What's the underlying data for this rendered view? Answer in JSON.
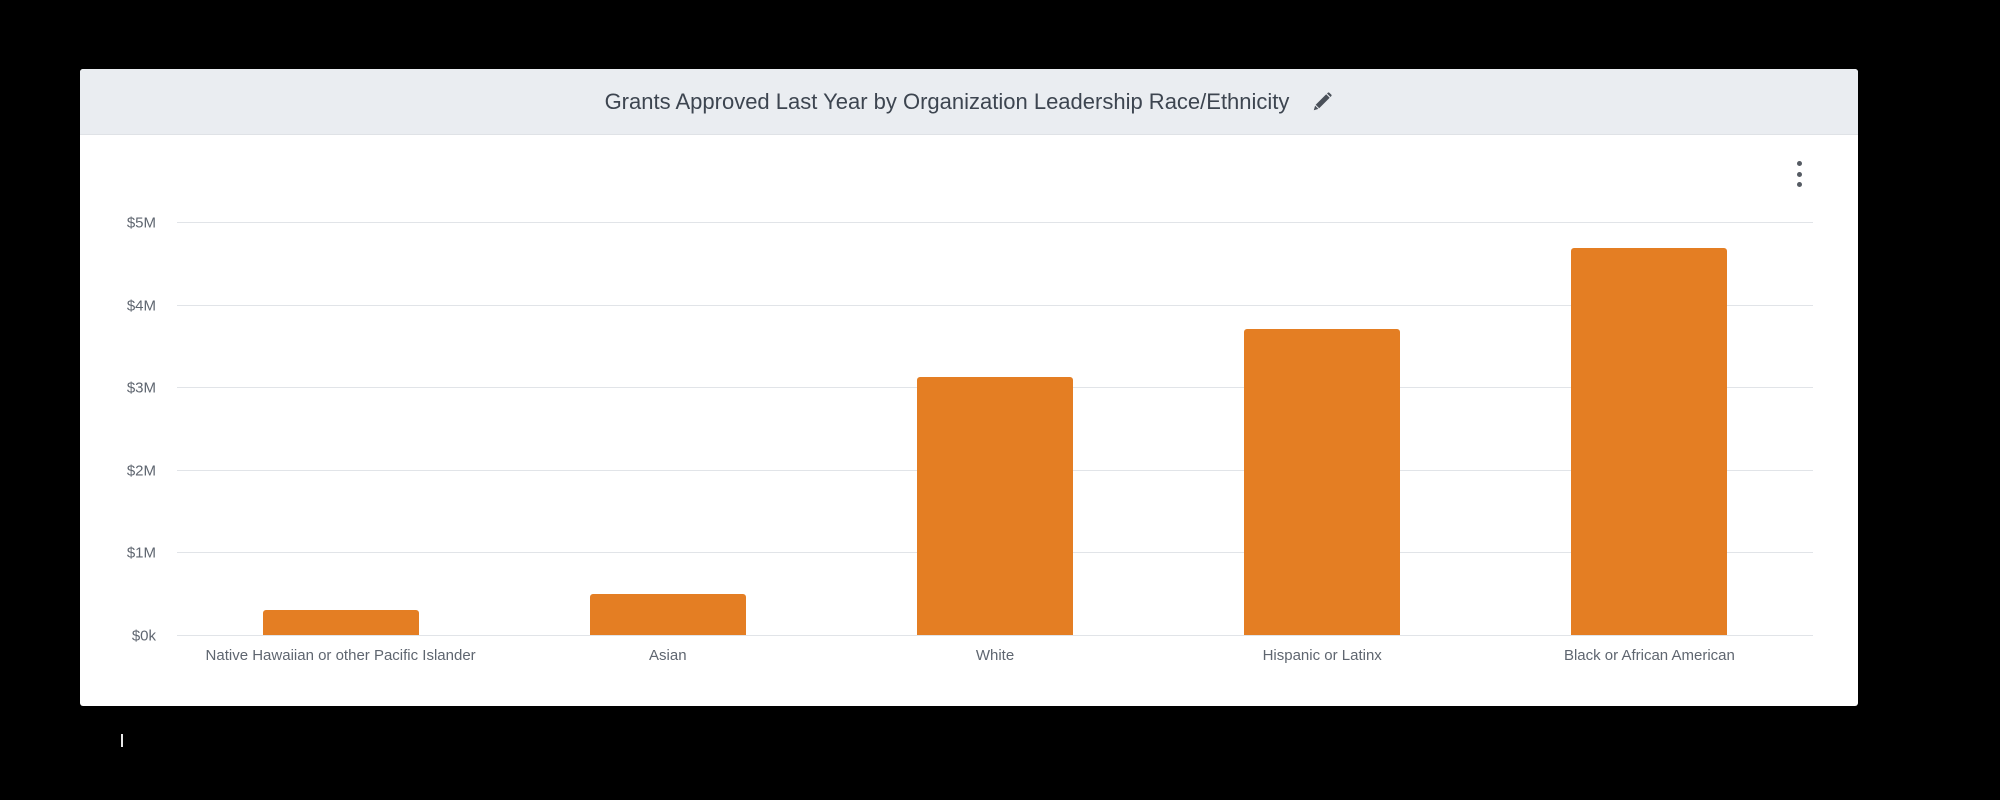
{
  "panel": {
    "title": "Grants Approved Last Year by Organization Leadership Race/Ethnicity",
    "edit_icon": "pencil-icon",
    "menu_icon": "kebab-menu-icon"
  },
  "colors": {
    "bar": "#e47e23",
    "header_bg": "#eaedf1",
    "gridline": "#e1e4e8",
    "axis_text": "#5f6670",
    "title_text": "#3d4550"
  },
  "chart_data": {
    "type": "bar",
    "title": "Grants Approved Last Year by Organization Leadership Race/Ethnicity",
    "xlabel": "",
    "ylabel": "",
    "categories": [
      "Native Hawaiian or other Pacific Islander",
      "Asian",
      "White",
      "Hispanic or Latinx",
      "Black or African American"
    ],
    "values": [
      300000,
      500000,
      3120000,
      3700000,
      4690000
    ],
    "ylim": [
      0,
      5000000
    ],
    "yticks": [
      0,
      1000000,
      2000000,
      3000000,
      4000000,
      5000000
    ],
    "ytick_labels": [
      "$0k",
      "$1M",
      "$2M",
      "$3M",
      "$4M",
      "$5M"
    ],
    "grid": true,
    "legend": null
  }
}
